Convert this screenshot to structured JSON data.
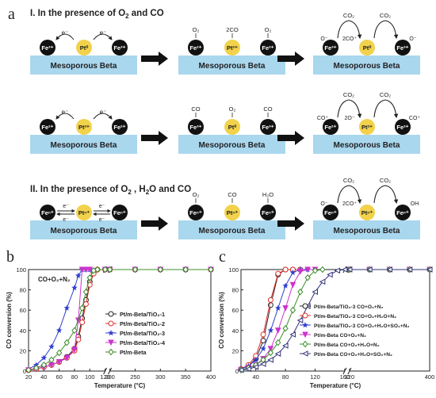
{
  "panel_a": {
    "letter": "a",
    "section1_heading": "I. In the presence of O",
    "section1_heading_sub": "2",
    "section1_heading_tail": " and CO",
    "section2_heading": "II. In the presence of O",
    "section2_heading_sub": "2",
    "section2_heading_mid": " , H",
    "section2_heading_sub2": "2",
    "section2_heading_tail": "O and CO",
    "support_label": "Mesoporous Beta",
    "electron": "e⁻"
  },
  "panel_b": {
    "letter": "b",
    "annotation": "CO+O₂+N₂"
  },
  "panel_c": {
    "letter": "c"
  },
  "chart_data": [
    {
      "type": "line",
      "panel": "b",
      "xlabel": "Temperature (°C)",
      "ylabel": "CO conversion (%)",
      "xlim": [
        20,
        400
      ],
      "ylim": [
        0,
        100
      ],
      "x_ticks": [
        20,
        40,
        60,
        80,
        100,
        120,
        140,
        160,
        180,
        200,
        220,
        240,
        260,
        280,
        300,
        320,
        340,
        360,
        380,
        400
      ],
      "x_tick_labels": [
        "20",
        "40",
        "60",
        "80",
        "100",
        "120",
        "",
        "",
        "",
        "",
        "",
        "",
        "",
        "",
        "",
        "",
        "",
        "",
        "",
        ""
      ],
      "x_tick_labels_right": [
        "200",
        "250",
        "300",
        "350",
        "400"
      ],
      "y_ticks": [
        0,
        20,
        40,
        60,
        80,
        100
      ],
      "axis_break": true,
      "legend_position": "right",
      "series": [
        {
          "name": "Pt/m-Beta/TiO₂-1",
          "color": "#222222",
          "marker": "circle",
          "x": [
            20,
            30,
            40,
            50,
            60,
            70,
            80,
            85,
            90,
            95,
            100,
            105,
            110,
            120,
            200,
            250,
            300,
            350,
            400
          ],
          "y": [
            1,
            2,
            4,
            6,
            9,
            14,
            22,
            34,
            52,
            70,
            88,
            97,
            100,
            100,
            100,
            100,
            100,
            100,
            100
          ]
        },
        {
          "name": "Pt/m-Beta/TiO₂-2",
          "color": "#e0302a",
          "marker": "circle",
          "x": [
            20,
            30,
            40,
            50,
            60,
            70,
            80,
            85,
            90,
            95,
            100,
            105,
            110,
            120,
            200,
            250,
            300,
            350,
            400
          ],
          "y": [
            1,
            2,
            4,
            6,
            9,
            13,
            20,
            31,
            48,
            66,
            85,
            96,
            100,
            100,
            100,
            100,
            100,
            100,
            100
          ]
        },
        {
          "name": "Pt/m-Beta/TiO₂-3",
          "color": "#2f3fcf",
          "marker": "star",
          "x": [
            20,
            30,
            40,
            50,
            60,
            70,
            80,
            85,
            90,
            95,
            100,
            120,
            200,
            250,
            300,
            350,
            400
          ],
          "y": [
            2,
            6,
            13,
            24,
            40,
            62,
            82,
            94,
            100,
            100,
            100,
            100,
            100,
            100,
            100,
            100,
            100
          ]
        },
        {
          "name": "Pt/m-Beta/TiO₂-4",
          "color": "#cc33cc",
          "marker": "triangle-down",
          "x": [
            20,
            30,
            40,
            50,
            60,
            70,
            80,
            85,
            90,
            95,
            100,
            120,
            200,
            250,
            300,
            350,
            400
          ],
          "y": [
            1,
            2,
            4,
            6,
            9,
            13,
            21,
            50,
            100,
            100,
            100,
            100,
            100,
            100,
            100,
            100,
            100
          ]
        },
        {
          "name": "Pt/m-Beta",
          "color": "#3c8c2a",
          "marker": "diamond",
          "x": [
            20,
            30,
            40,
            50,
            60,
            70,
            80,
            90,
            95,
            100,
            105,
            110,
            120,
            200,
            250,
            300,
            350,
            400
          ],
          "y": [
            1,
            3,
            6,
            11,
            18,
            28,
            40,
            62,
            78,
            92,
            99,
            100,
            100,
            100,
            100,
            100,
            100,
            100
          ]
        }
      ]
    },
    {
      "type": "line",
      "panel": "c",
      "xlabel": "Temperature (°C)",
      "ylabel": "CO conversion (%)",
      "xlim": [
        20,
        400
      ],
      "ylim": [
        0,
        100
      ],
      "x_tick_labels_left": [
        "40",
        "80",
        "120",
        "160"
      ],
      "x_tick_labels_right": [
        "320",
        "400"
      ],
      "y_ticks": [
        0,
        20,
        40,
        60,
        80,
        100
      ],
      "axis_break": true,
      "legend_position": "right",
      "series": [
        {
          "name": "Pt/m-Beta/TiO₂-3  CO+O₂+N₂",
          "color": "#222222",
          "marker": "circle",
          "x": [
            20,
            30,
            40,
            50,
            60,
            70,
            80,
            90,
            100,
            320,
            340,
            360,
            380,
            400
          ],
          "y": [
            2,
            5,
            12,
            30,
            65,
            95,
            100,
            100,
            100,
            100,
            100,
            100,
            100,
            100
          ]
        },
        {
          "name": "Pt/m-Beta/TiO₂-3  CO+O₂+H₂O+N₂",
          "color": "#e0302a",
          "marker": "circle",
          "x": [
            20,
            30,
            40,
            50,
            60,
            70,
            80,
            90,
            100,
            320,
            340,
            360,
            380,
            400
          ],
          "y": [
            2,
            6,
            15,
            36,
            70,
            96,
            100,
            100,
            100,
            100,
            100,
            100,
            100,
            100
          ]
        },
        {
          "name": "Pt/m-Beta/TiO₂-3  CO+O₂+H₂O+SO₂+N₂",
          "color": "#2f3fcf",
          "marker": "star",
          "x": [
            20,
            30,
            40,
            50,
            60,
            70,
            80,
            90,
            100,
            110,
            320,
            340,
            360,
            380,
            400
          ],
          "y": [
            2,
            5,
            11,
            22,
            40,
            62,
            84,
            97,
            100,
            100,
            100,
            100,
            100,
            100,
            100
          ]
        },
        {
          "name": "Pt/m-Beta  CO+O₂+N₂",
          "color": "#cc33cc",
          "marker": "triangle-down",
          "x": [
            20,
            30,
            40,
            50,
            60,
            70,
            80,
            90,
            100,
            110,
            120,
            320,
            340,
            360,
            380,
            400
          ],
          "y": [
            1,
            3,
            6,
            12,
            22,
            40,
            62,
            85,
            98,
            100,
            100,
            100,
            100,
            100,
            100,
            100
          ]
        },
        {
          "name": "Pt/m-Beta  CO+O₂+H₂O+N₂",
          "color": "#3c8c2a",
          "marker": "diamond",
          "x": [
            20,
            30,
            40,
            50,
            60,
            70,
            80,
            90,
            100,
            110,
            120,
            130,
            320,
            340,
            360,
            380,
            400
          ],
          "y": [
            1,
            3,
            6,
            11,
            18,
            28,
            42,
            60,
            78,
            92,
            99,
            100,
            100,
            100,
            100,
            100,
            100
          ]
        },
        {
          "name": "Pt/m-Beta  CO+O₂+H₂O+SO₂+N₂",
          "color": "#33337a",
          "marker": "triangle-left",
          "x": [
            20,
            30,
            40,
            50,
            60,
            70,
            80,
            90,
            100,
            110,
            120,
            130,
            140,
            150,
            160,
            320,
            340,
            360,
            380,
            400
          ],
          "y": [
            1,
            2,
            4,
            7,
            11,
            17,
            25,
            36,
            50,
            64,
            78,
            88,
            95,
            99,
            100,
            100,
            100,
            100,
            100,
            100
          ]
        }
      ]
    }
  ]
}
